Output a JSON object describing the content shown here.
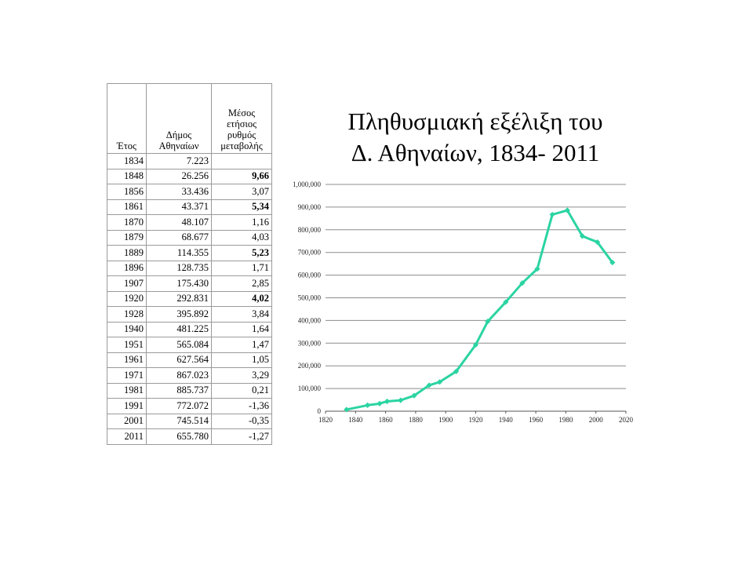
{
  "table": {
    "headers": [
      "Έτος",
      "Δήμος Αθηναίων",
      "Μέσος ετήσιος ρυθμός μεταβολής"
    ],
    "rows": [
      {
        "year": "1834",
        "pop": "7.223",
        "rate": "",
        "bold": false
      },
      {
        "year": "1848",
        "pop": "26.256",
        "rate": "9,66",
        "bold": true
      },
      {
        "year": "1856",
        "pop": "33.436",
        "rate": "3,07",
        "bold": false
      },
      {
        "year": "1861",
        "pop": "43.371",
        "rate": "5,34",
        "bold": true
      },
      {
        "year": "1870",
        "pop": "48.107",
        "rate": "1,16",
        "bold": false
      },
      {
        "year": "1879",
        "pop": "68.677",
        "rate": "4,03",
        "bold": false
      },
      {
        "year": "1889",
        "pop": "114.355",
        "rate": "5,23",
        "bold": true
      },
      {
        "year": "1896",
        "pop": "128.735",
        "rate": "1,71",
        "bold": false
      },
      {
        "year": "1907",
        "pop": "175.430",
        "rate": "2,85",
        "bold": false
      },
      {
        "year": "1920",
        "pop": "292.831",
        "rate": "4,02",
        "bold": true
      },
      {
        "year": "1928",
        "pop": "395.892",
        "rate": "3,84",
        "bold": false
      },
      {
        "year": "1940",
        "pop": "481.225",
        "rate": "1,64",
        "bold": false
      },
      {
        "year": "1951",
        "pop": "565.084",
        "rate": "1,47",
        "bold": false
      },
      {
        "year": "1961",
        "pop": "627.564",
        "rate": "1,05",
        "bold": false
      },
      {
        "year": "1971",
        "pop": "867.023",
        "rate": "3,29",
        "bold": false
      },
      {
        "year": "1981",
        "pop": "885.737",
        "rate": "0,21",
        "bold": false
      },
      {
        "year": "1991",
        "pop": "772.072",
        "rate": "-1,36",
        "bold": false
      },
      {
        "year": "2001",
        "pop": "745.514",
        "rate": "-0,35",
        "bold": false
      },
      {
        "year": "2011",
        "pop": "655.780",
        "rate": "-1,27",
        "bold": false
      }
    ]
  },
  "chart_data": {
    "type": "line",
    "title_lines": [
      "Πληθυσμιακή εξέλιξη του",
      "Δ. Αθηναίων, 1834- 2011"
    ],
    "xlabel": "",
    "ylabel": "",
    "x": [
      1834,
      1848,
      1856,
      1861,
      1870,
      1879,
      1889,
      1896,
      1907,
      1920,
      1928,
      1940,
      1951,
      1961,
      1971,
      1981,
      1991,
      2001,
      2011
    ],
    "series": [
      {
        "values": [
          7223,
          26256,
          33436,
          43371,
          48107,
          68677,
          114355,
          128735,
          175430,
          292831,
          395892,
          481225,
          565084,
          627564,
          867023,
          885737,
          772072,
          745514,
          655780
        ],
        "color": "#2bd4a2"
      }
    ],
    "xlim": [
      1820,
      2020
    ],
    "ylim": [
      0,
      1000000
    ],
    "x_ticks": [
      "1820",
      "1840",
      "1860",
      "1880",
      "1900",
      "1920",
      "1940",
      "1960",
      "1980",
      "2000",
      "2020"
    ],
    "y_ticks": [
      "0",
      "100,000",
      "200,000",
      "300,000",
      "400,000",
      "500,000",
      "600,000",
      "700,000",
      "800,000",
      "900,000",
      "1,000,000"
    ],
    "grid": "horizontal",
    "legend": "none",
    "line_color": "#2bd4a2",
    "grid_color": "#8c8c8c"
  }
}
